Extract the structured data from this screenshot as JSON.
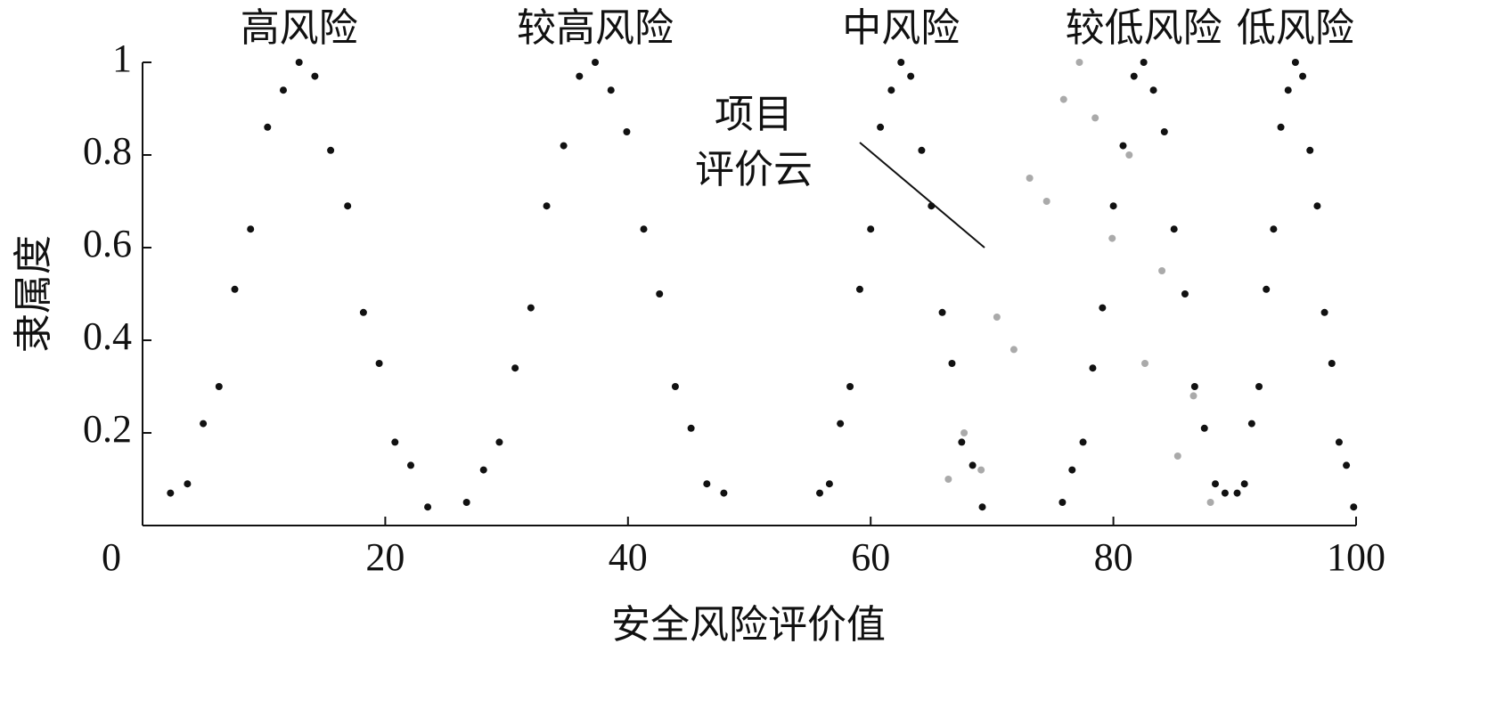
{
  "chart_data": {
    "type": "scatter",
    "x_label": "安全风险评价值",
    "y_label": "隶属度",
    "xlim": [
      0,
      100
    ],
    "ylim": [
      0,
      1
    ],
    "xticks": [
      0,
      20,
      40,
      60,
      80,
      100
    ],
    "yticks": [
      0.2,
      0.4,
      0.6,
      0.8,
      1
    ],
    "series": [
      {
        "name": "高风险",
        "color": "#111111",
        "x": [
          2.3,
          3.7,
          5.0,
          6.3,
          7.6,
          8.9,
          10.3,
          11.6,
          12.9,
          14.2,
          15.5,
          16.9,
          18.2,
          19.5,
          20.8,
          22.1,
          23.5
        ],
        "values": [
          0.07,
          0.09,
          0.22,
          0.3,
          0.51,
          0.64,
          0.86,
          0.94,
          1.0,
          0.97,
          0.81,
          0.69,
          0.46,
          0.35,
          0.18,
          0.13,
          0.04
        ]
      },
      {
        "name": "较高风险",
        "color": "#111111",
        "x": [
          26.7,
          28.1,
          29.4,
          30.7,
          32.0,
          33.3,
          34.7,
          36.0,
          37.3,
          38.6,
          39.9,
          41.3,
          42.6,
          43.9,
          45.2,
          46.5,
          47.9
        ],
        "values": [
          0.05,
          0.12,
          0.18,
          0.34,
          0.47,
          0.69,
          0.82,
          0.97,
          1.0,
          0.94,
          0.85,
          0.64,
          0.5,
          0.3,
          0.21,
          0.09,
          0.07
        ]
      },
      {
        "name": "中风险",
        "color": "#111111",
        "x": [
          55.8,
          56.6,
          57.5,
          58.3,
          59.1,
          60.0,
          60.8,
          61.7,
          62.5,
          63.3,
          64.2,
          65.0,
          65.9,
          66.7,
          67.5,
          68.4,
          69.2
        ],
        "values": [
          0.07,
          0.09,
          0.22,
          0.3,
          0.51,
          0.64,
          0.86,
          0.94,
          1.0,
          0.97,
          0.81,
          0.69,
          0.46,
          0.35,
          0.18,
          0.13,
          0.04
        ]
      },
      {
        "name": "较低风险",
        "color": "#111111",
        "x": [
          75.8,
          76.6,
          77.5,
          78.3,
          79.1,
          80.0,
          80.8,
          81.7,
          82.5,
          83.3,
          84.2,
          85.0,
          85.9,
          86.7,
          87.5,
          88.4,
          89.2
        ],
        "values": [
          0.05,
          0.12,
          0.18,
          0.34,
          0.47,
          0.69,
          0.82,
          0.97,
          1.0,
          0.94,
          0.85,
          0.64,
          0.5,
          0.3,
          0.21,
          0.09,
          0.07
        ]
      },
      {
        "name": "低风险",
        "color": "#111111",
        "x": [
          90.2,
          90.8,
          91.4,
          92.0,
          92.6,
          93.2,
          93.8,
          94.4,
          95.0,
          95.6,
          96.2,
          96.8,
          97.4,
          98.0,
          98.6,
          99.2,
          99.8
        ],
        "values": [
          0.07,
          0.09,
          0.22,
          0.3,
          0.51,
          0.64,
          0.86,
          0.94,
          1.0,
          0.97,
          0.81,
          0.69,
          0.46,
          0.35,
          0.18,
          0.13,
          0.04
        ]
      },
      {
        "name": "项目\n评价云",
        "color": "#aaaaaa",
        "x": [
          66.4,
          67.7,
          69.1,
          70.4,
          71.8,
          73.1,
          74.5,
          75.9,
          77.2,
          78.5,
          79.9,
          81.3,
          82.6,
          84.0,
          85.3,
          86.6,
          88.0
        ],
        "values": [
          0.1,
          0.2,
          0.12,
          0.45,
          0.38,
          0.75,
          0.7,
          0.92,
          1.0,
          0.88,
          0.62,
          0.8,
          0.35,
          0.55,
          0.15,
          0.28,
          0.05
        ]
      }
    ]
  }
}
